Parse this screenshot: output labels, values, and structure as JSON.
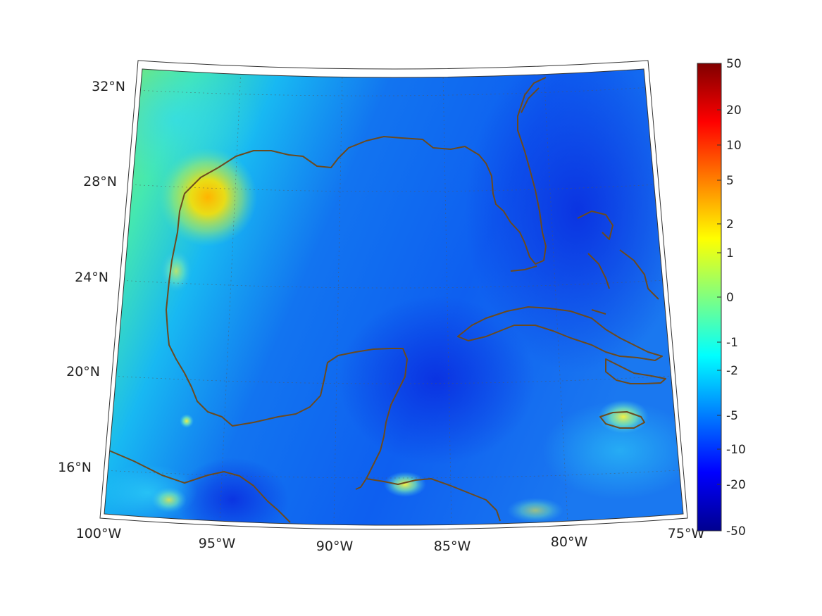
{
  "map": {
    "region": "Gulf of Mexico and Caribbean",
    "projection": "conic",
    "lon_labels": [
      "100°W",
      "95°W",
      "90°W",
      "85°W",
      "80°W",
      "75°W"
    ],
    "lat_labels": [
      "32°N",
      "28°N",
      "24°N",
      "20°N",
      "16°N"
    ],
    "coastline_color": "#6b4a1e",
    "ocean_base_color": "#1a6bf0",
    "land_offgrid_color": "#ffffff",
    "hotspots": [
      {
        "name": "texas-coast",
        "level": "positive",
        "color": "#ffd000"
      },
      {
        "name": "jamaica",
        "level": "positive",
        "color": "#e8f040"
      },
      {
        "name": "honduras-coast",
        "level": "positive",
        "color": "#e0f060"
      }
    ]
  },
  "colorbar": {
    "colormap": "jet",
    "ticks": [
      "50",
      "20",
      "10",
      "5",
      "2",
      "1",
      "0",
      "-1",
      "-2",
      "-5",
      "-10",
      "-20",
      "-50"
    ],
    "min": -50,
    "max": 50
  }
}
